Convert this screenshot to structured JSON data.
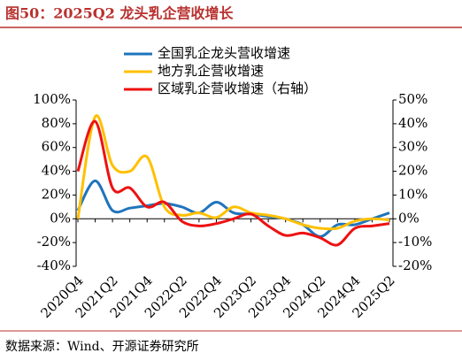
{
  "chart_data": {
    "type": "line",
    "title": "图50：2025Q2 龙头乳企营收增长",
    "source": "数据来源：Wind、开源证券研究所",
    "categories": [
      "2020Q4",
      null,
      "2021Q2",
      null,
      "2021Q4",
      null,
      "2022Q2",
      null,
      "2022Q4",
      null,
      "2023Q2",
      null,
      "2023Q4",
      null,
      "2024Q2",
      null,
      "2024Q4",
      null,
      "2025Q2"
    ],
    "series": [
      {
        "name": "全国乳企龙头营收增速",
        "color": "#1f74bd",
        "values": [
          7,
          32,
          7,
          9,
          11,
          13,
          10,
          5,
          14,
          5,
          4,
          2,
          0,
          -5,
          -15,
          -5,
          -5,
          0,
          5
        ]
      },
      {
        "name": "地方乳企营收增速",
        "color": "#ffc000",
        "values": [
          0,
          86,
          45,
          40,
          52,
          10,
          3,
          5,
          1,
          10,
          5,
          3,
          0,
          -5,
          -8,
          -8,
          -2,
          0,
          -1
        ]
      },
      {
        "name": "区域乳企营收增速（右轴）",
        "color": "#ee1111",
        "axis": "y2",
        "values": [
          20,
          41,
          13,
          13,
          5,
          7,
          -1,
          -3,
          -2,
          0,
          2,
          -3,
          -7,
          -6,
          -8,
          -11,
          -4,
          -3,
          -2
        ]
      }
    ],
    "ylim": [
      -40,
      100
    ],
    "yticks": [
      {
        "value": -40,
        "label": "-40%"
      },
      {
        "value": -20,
        "label": "-20%"
      },
      {
        "value": 0,
        "label": "0%"
      },
      {
        "value": 20,
        "label": "20%"
      },
      {
        "value": 40,
        "label": "40%"
      },
      {
        "value": 60,
        "label": "60%"
      },
      {
        "value": 80,
        "label": "80%"
      },
      {
        "value": 100,
        "label": "100%"
      }
    ],
    "y2lim": [
      -20,
      50
    ],
    "y2ticks": [
      {
        "value": -20,
        "label": "-20%"
      },
      {
        "value": -10,
        "label": "-10%"
      },
      {
        "value": 0,
        "label": "0%"
      },
      {
        "value": 10,
        "label": "10%"
      },
      {
        "value": 20,
        "label": "20%"
      },
      {
        "value": 30,
        "label": "30%"
      },
      {
        "value": 40,
        "label": "40%"
      },
      {
        "value": 50,
        "label": "50%"
      }
    ]
  }
}
